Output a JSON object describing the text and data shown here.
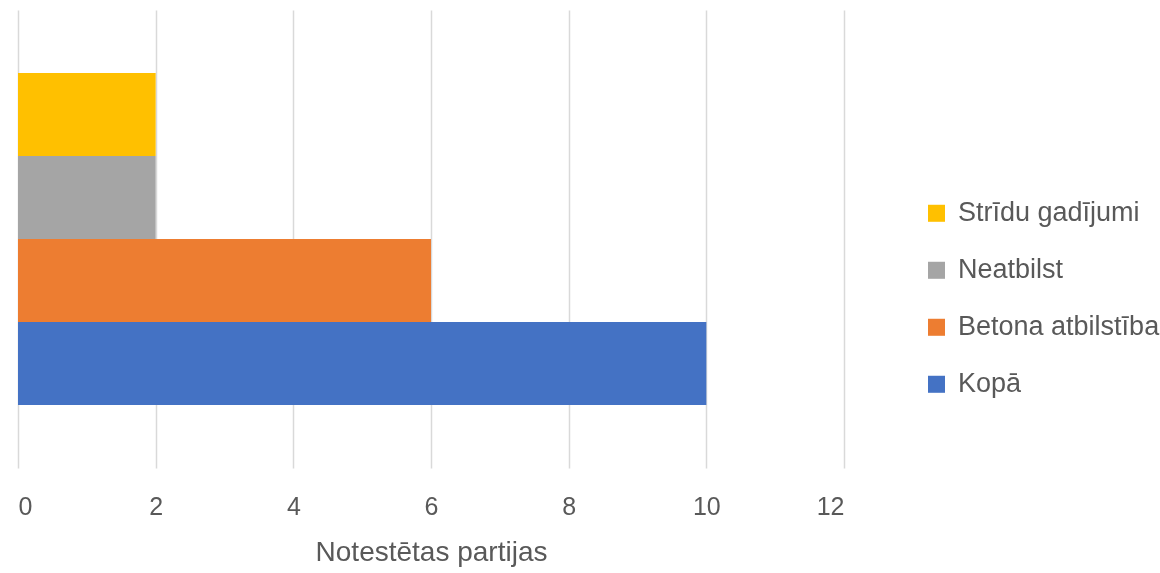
{
  "chart_data": {
    "type": "bar",
    "orientation": "horizontal",
    "categories": [
      null
    ],
    "series": [
      {
        "name": "Strīdu gadījumi",
        "color": "#ffc000",
        "values": [
          2
        ]
      },
      {
        "name": "Neatbilst",
        "color": "#a5a5a5",
        "values": [
          2
        ]
      },
      {
        "name": "Betona atbilstība",
        "color": "#ed7d31",
        "values": [
          6
        ]
      },
      {
        "name": "Kopā",
        "color": "#4472c4",
        "values": [
          10
        ]
      }
    ],
    "xlabel": "Notestētas partijas",
    "xlim": [
      0,
      12
    ],
    "xticks": [
      0,
      2,
      4,
      6,
      8,
      10,
      12
    ],
    "grid": "x",
    "legend": "right"
  }
}
